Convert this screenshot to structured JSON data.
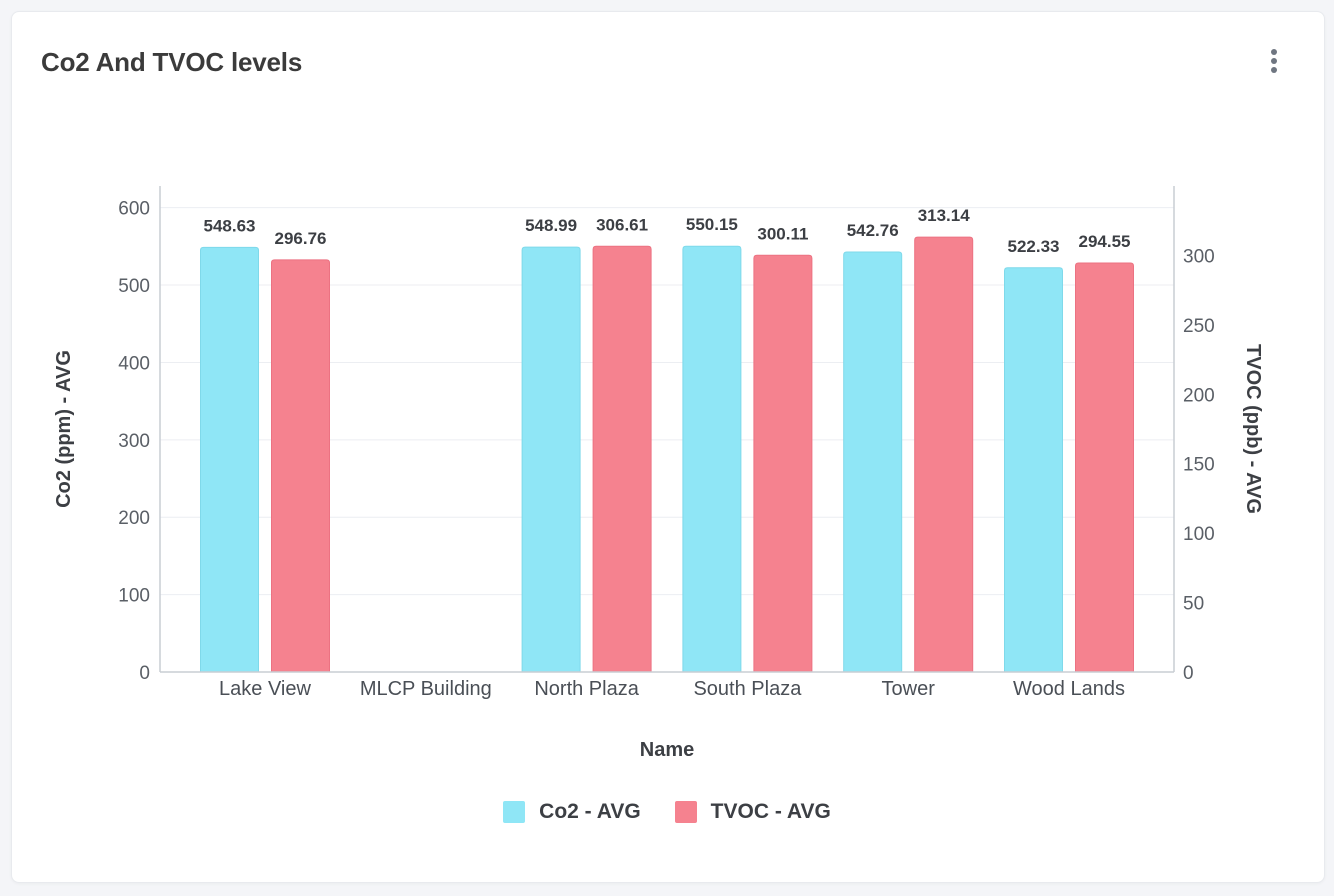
{
  "card": {
    "title": "Co2 And TVOC levels",
    "menu_icon": "more-vertical-icon"
  },
  "chart_data": {
    "type": "bar",
    "title": "Co2 And TVOC levels",
    "xlabel": "Name",
    "ylabel": "Co2 (ppm) - AVG",
    "y2label": "TVOC (ppb) - AVG",
    "categories": [
      "Lake View",
      "MLCP Building",
      "North Plaza",
      "South Plaza",
      "Tower",
      "Wood Lands"
    ],
    "series": [
      {
        "name": "Co2 - AVG",
        "axis": "left",
        "color": "#8fe6f6",
        "values": [
          548.63,
          null,
          548.99,
          550.15,
          542.76,
          522.33
        ],
        "labels": [
          "548.63",
          "",
          "548.99",
          "550.15",
          "542.76",
          "522.33"
        ]
      },
      {
        "name": "TVOC - AVG",
        "axis": "right",
        "color": "#f5828f",
        "values": [
          296.76,
          null,
          306.61,
          300.11,
          313.14,
          294.55
        ],
        "labels": [
          "296.76",
          "",
          "306.61",
          "300.11",
          "313.14",
          "294.55"
        ]
      }
    ],
    "ylim": [
      0,
      628
    ],
    "y2lim": [
      0,
      350
    ],
    "yticks": [
      0,
      100,
      200,
      300,
      400,
      500,
      600
    ],
    "y2ticks": [
      0,
      50,
      100,
      150,
      200,
      250,
      300
    ],
    "grid": true,
    "legend_position": "bottom"
  }
}
